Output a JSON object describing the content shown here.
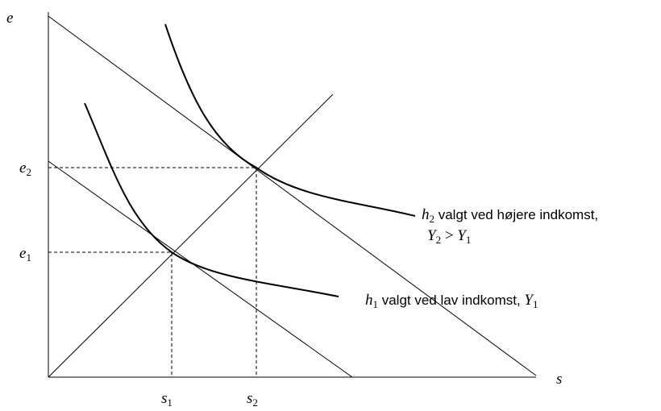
{
  "axes": {
    "y_label": [
      {
        "text": "e",
        "style": "italic"
      }
    ],
    "x_label": [
      {
        "text": "s",
        "style": "italic"
      }
    ]
  },
  "tick_labels": {
    "e2": [
      {
        "text": "e",
        "style": "italic"
      },
      {
        "text": "2",
        "style": "sub"
      }
    ],
    "e1": [
      {
        "text": "e",
        "style": "italic"
      },
      {
        "text": "1",
        "style": "sub"
      }
    ],
    "s1": [
      {
        "text": "s",
        "style": "italic"
      },
      {
        "text": "1",
        "style": "sub"
      }
    ],
    "s2": [
      {
        "text": "s",
        "style": "italic"
      },
      {
        "text": "2",
        "style": "sub"
      }
    ]
  },
  "annotations": {
    "h2_line1": [
      {
        "text": "h",
        "style": "italic"
      },
      {
        "text": "2",
        "style": "sub"
      },
      {
        "text": " valgt ved højere indkomst,",
        "style": "normal"
      }
    ],
    "h2_line2": [
      {
        "text": "Y",
        "style": "italic"
      },
      {
        "text": "2",
        "style": "sub"
      },
      {
        "text": " > ",
        "style": "math"
      },
      {
        "text": "Y",
        "style": "italic"
      },
      {
        "text": "1",
        "style": "sub"
      }
    ],
    "h1": [
      {
        "text": "h",
        "style": "italic"
      },
      {
        "text": "1",
        "style": "sub"
      },
      {
        "text": " valgt ved lav indkomst, ",
        "style": "normal"
      },
      {
        "text": "Y",
        "style": "italic"
      },
      {
        "text": "1",
        "style": "sub"
      }
    ]
  }
}
